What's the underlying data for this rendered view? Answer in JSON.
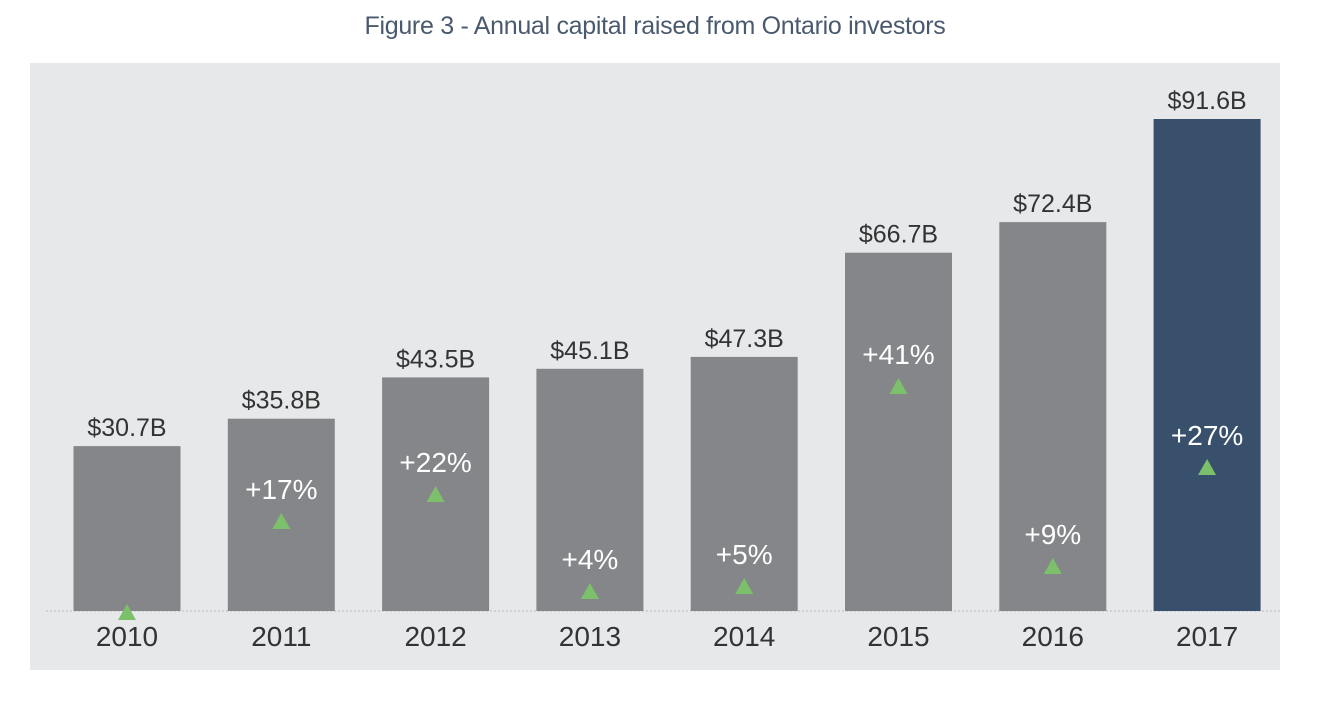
{
  "chart_data": {
    "type": "bar",
    "title": "Figure 3 - Annual capital raised from Ontario investors",
    "xlabel": "",
    "ylabel": "",
    "categories": [
      "2010",
      "2011",
      "2012",
      "2013",
      "2014",
      "2015",
      "2016",
      "2017"
    ],
    "values": [
      30.7,
      35.8,
      43.5,
      45.1,
      47.3,
      66.7,
      72.4,
      91.6
    ],
    "value_labels": [
      "$30.7B",
      "$35.8B",
      "$43.5B",
      "$45.1B",
      "$47.3B",
      "$66.7B",
      "$72.4B",
      "$91.6B"
    ],
    "growth_labels": [
      "",
      "+17%",
      "+22%",
      "+4%",
      "+5%",
      "+41%",
      "+9%",
      "+27%"
    ],
    "ylim": [
      0,
      91.6
    ],
    "grid": false,
    "highlight_index": 7,
    "colors": {
      "bar": "#858689",
      "highlight": "#38506c",
      "arrow": "#7cc06c",
      "plot_background": "#e7e8ea",
      "title": "#4a5a6e",
      "label": "#333333"
    }
  }
}
